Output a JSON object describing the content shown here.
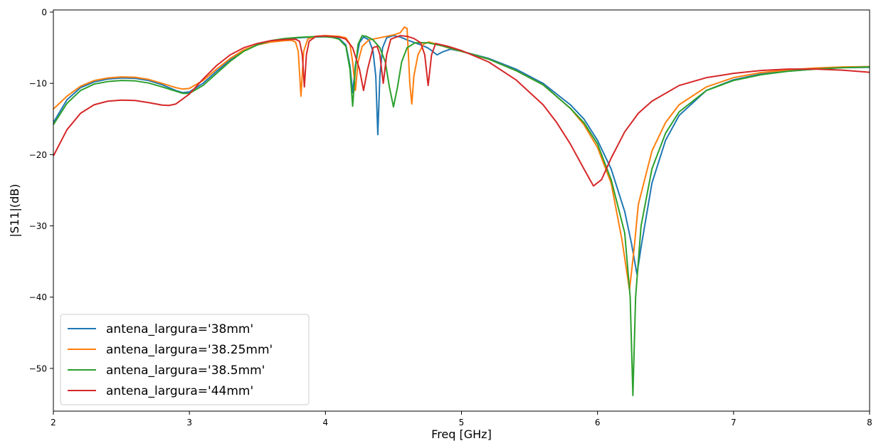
{
  "chart_data": {
    "type": "line",
    "xlabel": "Freq [GHz]",
    "ylabel": "|S11|(dB)",
    "xlim": [
      2,
      8
    ],
    "ylim": [
      -56,
      0.3
    ],
    "x_ticks": [
      2,
      3,
      4,
      5,
      6,
      7,
      8
    ],
    "y_ticks": [
      0,
      -10,
      -20,
      -30,
      -40,
      -50
    ],
    "x_tick_labels": [
      "2",
      "3",
      "4",
      "5",
      "6",
      "7",
      "8"
    ],
    "y_tick_labels": [
      "0",
      "−10",
      "−20",
      "−30",
      "−40",
      "−50"
    ],
    "grid": false,
    "legend_position": "lower-left",
    "series": [
      {
        "name": "antena_largura='38mm'",
        "color": "#1f77b4",
        "points": [
          [
            2.0,
            -15.5
          ],
          [
            2.1,
            -12.3
          ],
          [
            2.2,
            -10.6
          ],
          [
            2.3,
            -9.8
          ],
          [
            2.4,
            -9.4
          ],
          [
            2.5,
            -9.25
          ],
          [
            2.6,
            -9.3
          ],
          [
            2.7,
            -9.6
          ],
          [
            2.8,
            -10.2
          ],
          [
            2.9,
            -11.0
          ],
          [
            2.95,
            -11.3
          ],
          [
            3.0,
            -11.2
          ],
          [
            3.1,
            -10.0
          ],
          [
            3.2,
            -8.3
          ],
          [
            3.3,
            -6.7
          ],
          [
            3.4,
            -5.4
          ],
          [
            3.5,
            -4.6
          ],
          [
            3.6,
            -4.1
          ],
          [
            3.7,
            -3.8
          ],
          [
            3.8,
            -3.6
          ],
          [
            3.9,
            -3.5
          ],
          [
            4.0,
            -3.45
          ],
          [
            4.05,
            -3.5
          ],
          [
            4.1,
            -3.7
          ],
          [
            4.15,
            -4.6
          ],
          [
            4.18,
            -7.5
          ],
          [
            4.2,
            -11.3
          ],
          [
            4.22,
            -7.5
          ],
          [
            4.25,
            -4.3
          ],
          [
            4.28,
            -3.5
          ],
          [
            4.32,
            -3.9
          ],
          [
            4.35,
            -5.5
          ],
          [
            4.37,
            -9.0
          ],
          [
            4.385,
            -17.2
          ],
          [
            4.4,
            -9.0
          ],
          [
            4.42,
            -5.0
          ],
          [
            4.45,
            -3.6
          ],
          [
            4.5,
            -3.3
          ],
          [
            4.55,
            -3.5
          ],
          [
            4.6,
            -3.9
          ],
          [
            4.7,
            -4.6
          ],
          [
            4.75,
            -5.0
          ],
          [
            4.78,
            -5.4
          ],
          [
            4.82,
            -6.0
          ],
          [
            4.86,
            -5.6
          ],
          [
            4.92,
            -5.2
          ],
          [
            5.0,
            -5.5
          ],
          [
            5.2,
            -6.5
          ],
          [
            5.4,
            -8.0
          ],
          [
            5.6,
            -10.0
          ],
          [
            5.8,
            -13.0
          ],
          [
            5.9,
            -15.0
          ],
          [
            6.0,
            -18.0
          ],
          [
            6.1,
            -22.0
          ],
          [
            6.2,
            -28.0
          ],
          [
            6.25,
            -32.5
          ],
          [
            6.29,
            -36.8
          ],
          [
            6.32,
            -33.0
          ],
          [
            6.4,
            -24.0
          ],
          [
            6.5,
            -18.0
          ],
          [
            6.6,
            -14.5
          ],
          [
            6.8,
            -11.0
          ],
          [
            7.0,
            -9.5
          ],
          [
            7.2,
            -8.7
          ],
          [
            7.4,
            -8.3
          ],
          [
            7.6,
            -8.0
          ],
          [
            7.8,
            -7.8
          ],
          [
            8.0,
            -7.75
          ]
        ]
      },
      {
        "name": "antena_largura='38.25mm'",
        "color": "#ff7f0e",
        "points": [
          [
            2.0,
            -13.6
          ],
          [
            2.1,
            -11.8
          ],
          [
            2.2,
            -10.4
          ],
          [
            2.3,
            -9.6
          ],
          [
            2.4,
            -9.25
          ],
          [
            2.5,
            -9.1
          ],
          [
            2.6,
            -9.15
          ],
          [
            2.7,
            -9.45
          ],
          [
            2.8,
            -10.0
          ],
          [
            2.9,
            -10.6
          ],
          [
            2.95,
            -10.8
          ],
          [
            3.0,
            -10.7
          ],
          [
            3.1,
            -9.6
          ],
          [
            3.2,
            -8.0
          ],
          [
            3.3,
            -6.5
          ],
          [
            3.4,
            -5.3
          ],
          [
            3.5,
            -4.6
          ],
          [
            3.6,
            -4.2
          ],
          [
            3.7,
            -4.0
          ],
          [
            3.75,
            -3.95
          ],
          [
            3.78,
            -4.2
          ],
          [
            3.8,
            -5.5
          ],
          [
            3.82,
            -11.8
          ],
          [
            3.84,
            -5.5
          ],
          [
            3.87,
            -3.8
          ],
          [
            3.92,
            -3.4
          ],
          [
            4.0,
            -3.3
          ],
          [
            4.1,
            -3.4
          ],
          [
            4.15,
            -3.6
          ],
          [
            4.18,
            -4.5
          ],
          [
            4.2,
            -7.0
          ],
          [
            4.22,
            -11.0
          ],
          [
            4.24,
            -7.0
          ],
          [
            4.27,
            -4.8
          ],
          [
            4.32,
            -3.9
          ],
          [
            4.4,
            -3.6
          ],
          [
            4.5,
            -3.2
          ],
          [
            4.55,
            -2.9
          ],
          [
            4.58,
            -2.1
          ],
          [
            4.6,
            -2.3
          ],
          [
            4.61,
            -6.0
          ],
          [
            4.62,
            -10.0
          ],
          [
            4.635,
            -12.9
          ],
          [
            4.65,
            -9.0
          ],
          [
            4.68,
            -6.0
          ],
          [
            4.72,
            -4.5
          ],
          [
            4.76,
            -4.2
          ],
          [
            4.8,
            -4.4
          ],
          [
            4.9,
            -5.0
          ],
          [
            5.0,
            -5.5
          ],
          [
            5.2,
            -6.6
          ],
          [
            5.4,
            -8.2
          ],
          [
            5.6,
            -10.2
          ],
          [
            5.8,
            -13.5
          ],
          [
            5.9,
            -15.8
          ],
          [
            6.0,
            -19.0
          ],
          [
            6.1,
            -24.0
          ],
          [
            6.18,
            -32.0
          ],
          [
            6.235,
            -39.0
          ],
          [
            6.27,
            -33.0
          ],
          [
            6.3,
            -27.0
          ],
          [
            6.4,
            -19.5
          ],
          [
            6.5,
            -15.5
          ],
          [
            6.6,
            -13.0
          ],
          [
            6.8,
            -10.5
          ],
          [
            7.0,
            -9.2
          ],
          [
            7.2,
            -8.5
          ],
          [
            7.4,
            -8.1
          ],
          [
            7.6,
            -7.85
          ],
          [
            7.8,
            -7.7
          ],
          [
            8.0,
            -7.65
          ]
        ]
      },
      {
        "name": "antena_largura='38.5mm'",
        "color": "#2ca02c",
        "points": [
          [
            2.0,
            -15.8
          ],
          [
            2.1,
            -12.8
          ],
          [
            2.2,
            -11.0
          ],
          [
            2.3,
            -10.1
          ],
          [
            2.4,
            -9.75
          ],
          [
            2.5,
            -9.6
          ],
          [
            2.6,
            -9.65
          ],
          [
            2.7,
            -9.95
          ],
          [
            2.8,
            -10.5
          ],
          [
            2.9,
            -11.1
          ],
          [
            2.95,
            -11.4
          ],
          [
            3.0,
            -11.4
          ],
          [
            3.1,
            -10.3
          ],
          [
            3.2,
            -8.6
          ],
          [
            3.3,
            -6.9
          ],
          [
            3.4,
            -5.5
          ],
          [
            3.5,
            -4.6
          ],
          [
            3.6,
            -4.0
          ],
          [
            3.7,
            -3.7
          ],
          [
            3.8,
            -3.55
          ],
          [
            3.9,
            -3.45
          ],
          [
            4.0,
            -3.45
          ],
          [
            4.05,
            -3.55
          ],
          [
            4.1,
            -3.8
          ],
          [
            4.15,
            -4.8
          ],
          [
            4.18,
            -8.0
          ],
          [
            4.2,
            -13.2
          ],
          [
            4.22,
            -8.0
          ],
          [
            4.24,
            -4.5
          ],
          [
            4.27,
            -3.3
          ],
          [
            4.3,
            -3.4
          ],
          [
            4.35,
            -3.9
          ],
          [
            4.4,
            -5.0
          ],
          [
            4.44,
            -7.0
          ],
          [
            4.47,
            -10.5
          ],
          [
            4.5,
            -13.3
          ],
          [
            4.53,
            -10.5
          ],
          [
            4.56,
            -7.0
          ],
          [
            4.6,
            -5.0
          ],
          [
            4.66,
            -4.3
          ],
          [
            4.75,
            -4.3
          ],
          [
            4.85,
            -4.7
          ],
          [
            5.0,
            -5.5
          ],
          [
            5.2,
            -6.6
          ],
          [
            5.4,
            -8.2
          ],
          [
            5.6,
            -10.2
          ],
          [
            5.8,
            -13.5
          ],
          [
            5.9,
            -15.5
          ],
          [
            6.0,
            -18.5
          ],
          [
            6.1,
            -23.5
          ],
          [
            6.2,
            -31.0
          ],
          [
            6.24,
            -40.0
          ],
          [
            6.26,
            -53.8
          ],
          [
            6.28,
            -40.0
          ],
          [
            6.32,
            -30.0
          ],
          [
            6.4,
            -22.0
          ],
          [
            6.5,
            -17.0
          ],
          [
            6.6,
            -14.0
          ],
          [
            6.8,
            -11.0
          ],
          [
            7.0,
            -9.6
          ],
          [
            7.2,
            -8.8
          ],
          [
            7.4,
            -8.3
          ],
          [
            7.6,
            -8.0
          ],
          [
            7.8,
            -7.8
          ],
          [
            8.0,
            -7.7
          ]
        ]
      },
      {
        "name": "antena_largura='44mm'",
        "color": "#d62728",
        "points": [
          [
            2.0,
            -20.2
          ],
          [
            2.1,
            -16.5
          ],
          [
            2.2,
            -14.2
          ],
          [
            2.3,
            -13.0
          ],
          [
            2.4,
            -12.5
          ],
          [
            2.5,
            -12.35
          ],
          [
            2.6,
            -12.4
          ],
          [
            2.7,
            -12.7
          ],
          [
            2.8,
            -13.05
          ],
          [
            2.85,
            -13.1
          ],
          [
            2.9,
            -12.9
          ],
          [
            3.0,
            -11.5
          ],
          [
            3.1,
            -9.4
          ],
          [
            3.2,
            -7.5
          ],
          [
            3.3,
            -6.0
          ],
          [
            3.4,
            -5.0
          ],
          [
            3.5,
            -4.4
          ],
          [
            3.6,
            -4.0
          ],
          [
            3.7,
            -3.85
          ],
          [
            3.78,
            -3.8
          ],
          [
            3.81,
            -4.1
          ],
          [
            3.83,
            -6.0
          ],
          [
            3.845,
            -10.5
          ],
          [
            3.86,
            -6.0
          ],
          [
            3.88,
            -4.1
          ],
          [
            3.93,
            -3.4
          ],
          [
            4.0,
            -3.35
          ],
          [
            4.1,
            -3.5
          ],
          [
            4.15,
            -3.8
          ],
          [
            4.2,
            -5.0
          ],
          [
            4.25,
            -8.0
          ],
          [
            4.28,
            -11.0
          ],
          [
            4.31,
            -8.0
          ],
          [
            4.35,
            -5.0
          ],
          [
            4.38,
            -4.8
          ],
          [
            4.4,
            -6.0
          ],
          [
            4.425,
            -10.0
          ],
          [
            4.45,
            -6.0
          ],
          [
            4.48,
            -3.8
          ],
          [
            4.55,
            -3.3
          ],
          [
            4.6,
            -3.4
          ],
          [
            4.65,
            -3.7
          ],
          [
            4.7,
            -4.3
          ],
          [
            4.73,
            -6.0
          ],
          [
            4.755,
            -10.3
          ],
          [
            4.78,
            -6.0
          ],
          [
            4.81,
            -4.4
          ],
          [
            4.9,
            -4.8
          ],
          [
            5.0,
            -5.4
          ],
          [
            5.2,
            -7.0
          ],
          [
            5.4,
            -9.5
          ],
          [
            5.6,
            -13.0
          ],
          [
            5.7,
            -15.5
          ],
          [
            5.8,
            -18.5
          ],
          [
            5.9,
            -22.0
          ],
          [
            5.97,
            -24.4
          ],
          [
            6.03,
            -23.5
          ],
          [
            6.1,
            -20.5
          ],
          [
            6.2,
            -16.8
          ],
          [
            6.3,
            -14.2
          ],
          [
            6.4,
            -12.5
          ],
          [
            6.6,
            -10.3
          ],
          [
            6.8,
            -9.2
          ],
          [
            7.0,
            -8.6
          ],
          [
            7.2,
            -8.2
          ],
          [
            7.4,
            -8.0
          ],
          [
            7.6,
            -8.0
          ],
          [
            7.8,
            -8.15
          ],
          [
            8.0,
            -8.45
          ]
        ]
      }
    ]
  }
}
